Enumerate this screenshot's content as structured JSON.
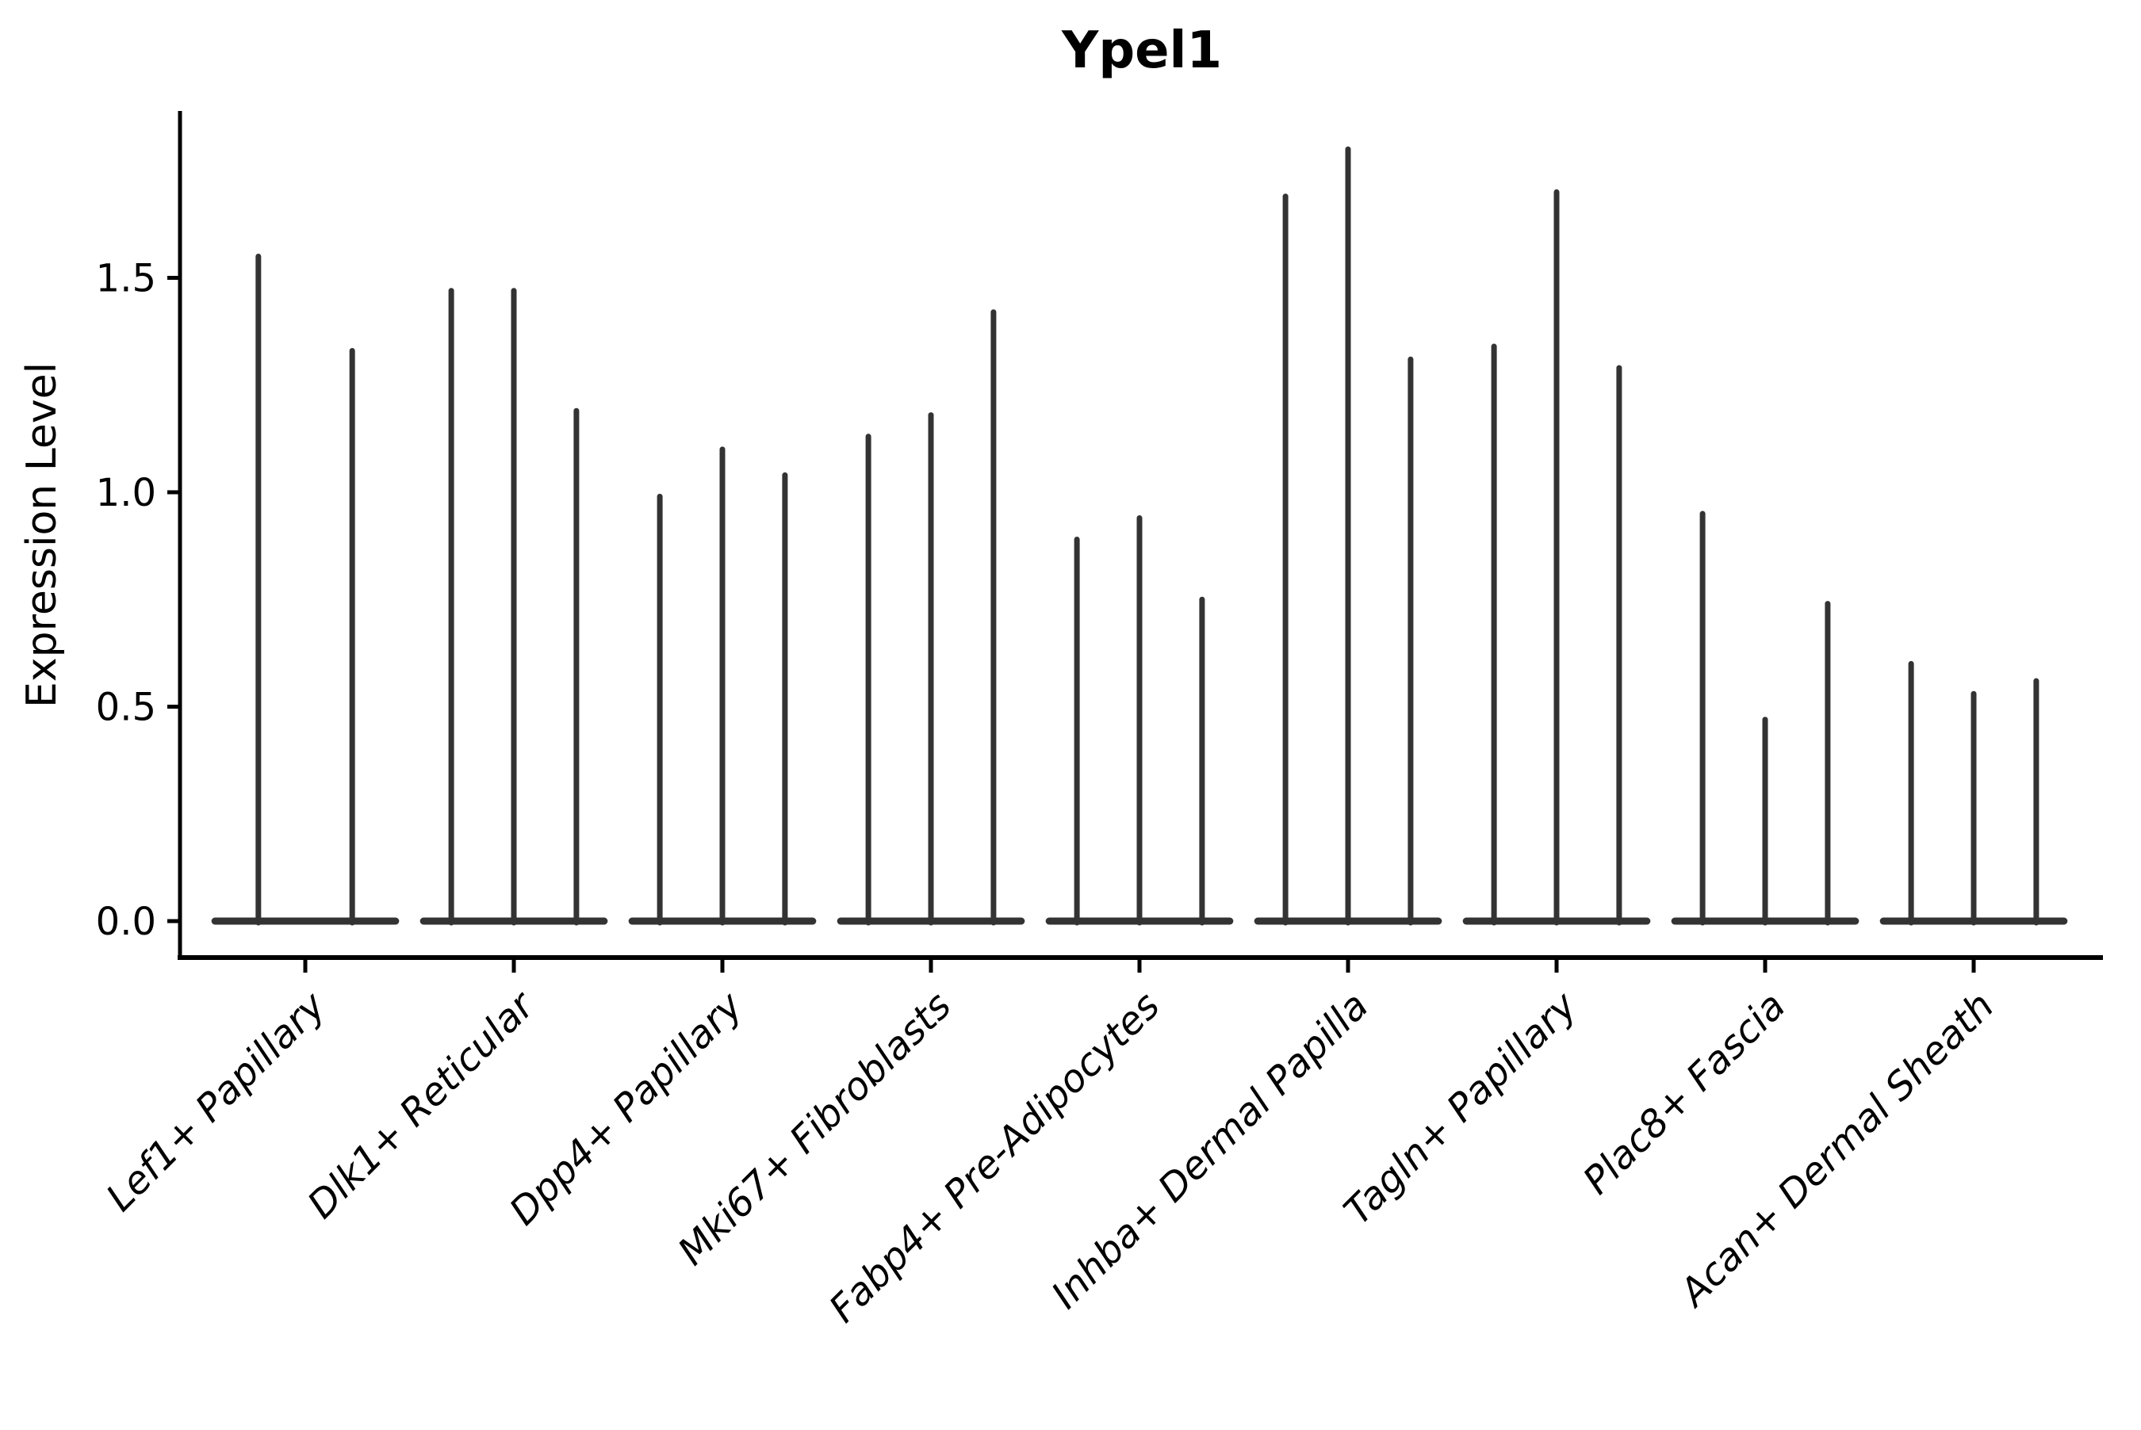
{
  "title": "Ypel1",
  "colors": {
    "violin_fill": "#333333",
    "axis": "#000000",
    "background": "#ffffff"
  },
  "chart_data": {
    "type": "violin",
    "title": "Ypel1",
    "xlabel": "",
    "ylabel": "Expression Level",
    "legend": "none",
    "grid": "off",
    "ylim": [
      -0.09,
      1.89
    ],
    "ytick_values": [
      0.0,
      0.5,
      1.0,
      1.5
    ],
    "ytick_labels": [
      "0.0",
      "0.5",
      "1.0",
      "1.5"
    ],
    "x_label_angle_degrees": 45,
    "categories": [
      "Lef1+ Papillary",
      "Dlk1+ Reticular",
      "Dpp4+ Papillary",
      "Mki67+ Fibroblasts",
      "Fabp4+ Pre-Adipocytes",
      "Inhba+ Dermal Papilla",
      "Tagln+ Papillary",
      "Plac8+ Fascia",
      "Acan+ Dermal Sheath"
    ],
    "description": "Needle-shaped violins: dense flat mass at expression 0 with a thin spike up to the max expression per violin; 2 violins in the first group, 3 in all others.",
    "groups": [
      {
        "category": "Lef1+ Papillary",
        "violin_max_values": [
          1.55,
          1.33
        ]
      },
      {
        "category": "Dlk1+ Reticular",
        "violin_max_values": [
          1.47,
          1.47,
          1.19
        ]
      },
      {
        "category": "Dpp4+ Papillary",
        "violin_max_values": [
          0.99,
          1.1,
          1.04
        ]
      },
      {
        "category": "Mki67+ Fibroblasts",
        "violin_max_values": [
          1.13,
          1.18,
          1.42
        ]
      },
      {
        "category": "Fabp4+ Pre-Adipocytes",
        "violin_max_values": [
          0.89,
          0.94,
          0.75
        ]
      },
      {
        "category": "Inhba+ Dermal Papilla",
        "violin_max_values": [
          1.69,
          1.8,
          1.31
        ]
      },
      {
        "category": "Tagln+ Papillary",
        "violin_max_values": [
          1.34,
          1.7,
          1.29
        ]
      },
      {
        "category": "Plac8+ Fascia",
        "violin_max_values": [
          0.95,
          0.47,
          0.74
        ]
      },
      {
        "category": "Acan+ Dermal Sheath",
        "violin_max_values": [
          0.6,
          0.53,
          0.56
        ]
      }
    ]
  }
}
